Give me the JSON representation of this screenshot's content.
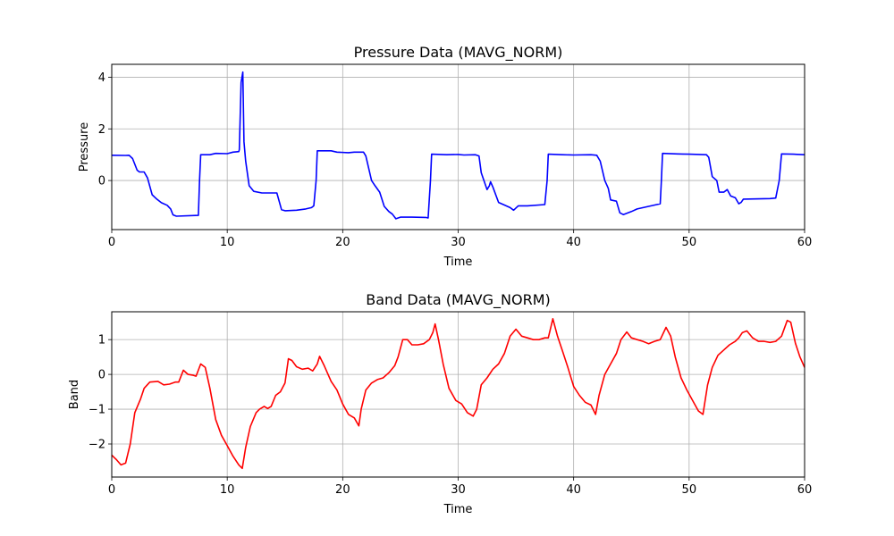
{
  "chart_data": [
    {
      "type": "line",
      "title": "Pressure Data (MAVG_NORM)",
      "xlabel": "Time",
      "ylabel": "Pressure",
      "xlim": [
        0,
        60
      ],
      "ylim": [
        -1.9,
        4.5
      ],
      "xticks": [
        0,
        10,
        20,
        30,
        40,
        50,
        60
      ],
      "yticks": [
        0,
        2,
        4
      ],
      "ytick_labels": [
        "0",
        "2",
        "4"
      ],
      "grid": true,
      "series": [
        {
          "color": "#0000ff",
          "points": [
            [
              0,
              0.98
            ],
            [
              1.2,
              0.97
            ],
            [
              1.5,
              0.98
            ],
            [
              1.8,
              0.85
            ],
            [
              2.2,
              0.4
            ],
            [
              2.4,
              0.33
            ],
            [
              2.8,
              0.33
            ],
            [
              3.1,
              0.1
            ],
            [
              3.5,
              -0.55
            ],
            [
              3.9,
              -0.72
            ],
            [
              4.3,
              -0.86
            ],
            [
              4.8,
              -0.96
            ],
            [
              5.1,
              -1.1
            ],
            [
              5.3,
              -1.33
            ],
            [
              5.6,
              -1.38
            ],
            [
              7.5,
              -1.35
            ],
            [
              7.6,
              0.0
            ],
            [
              7.7,
              1.0
            ],
            [
              8.5,
              1.0
            ],
            [
              9.0,
              1.05
            ],
            [
              10.0,
              1.04
            ],
            [
              10.5,
              1.1
            ],
            [
              11.0,
              1.12
            ],
            [
              11.05,
              1.2
            ],
            [
              11.2,
              3.8
            ],
            [
              11.35,
              4.2
            ],
            [
              11.45,
              1.5
            ],
            [
              11.6,
              0.75
            ],
            [
              11.9,
              -0.2
            ],
            [
              12.3,
              -0.42
            ],
            [
              13.0,
              -0.48
            ],
            [
              14.3,
              -0.48
            ],
            [
              14.7,
              -1.13
            ],
            [
              15.0,
              -1.17
            ],
            [
              16.0,
              -1.15
            ],
            [
              16.8,
              -1.1
            ],
            [
              17.3,
              -1.05
            ],
            [
              17.5,
              -0.98
            ],
            [
              17.7,
              0.0
            ],
            [
              17.8,
              1.15
            ],
            [
              19.0,
              1.15
            ],
            [
              19.5,
              1.1
            ],
            [
              20.5,
              1.08
            ],
            [
              21.0,
              1.1
            ],
            [
              21.8,
              1.1
            ],
            [
              22.0,
              0.95
            ],
            [
              22.5,
              0.0
            ],
            [
              22.8,
              -0.2
            ],
            [
              23.2,
              -0.45
            ],
            [
              23.6,
              -1.0
            ],
            [
              24.0,
              -1.2
            ],
            [
              24.3,
              -1.3
            ],
            [
              24.6,
              -1.48
            ],
            [
              25.0,
              -1.42
            ],
            [
              26.0,
              -1.42
            ],
            [
              27.2,
              -1.43
            ],
            [
              27.4,
              -1.45
            ],
            [
              27.6,
              0.0
            ],
            [
              27.7,
              1.02
            ],
            [
              29.0,
              1.0
            ],
            [
              30.0,
              1.01
            ],
            [
              30.5,
              0.99
            ],
            [
              31.5,
              1.0
            ],
            [
              31.8,
              0.95
            ],
            [
              32.0,
              0.3
            ],
            [
              32.5,
              -0.35
            ],
            [
              32.7,
              -0.2
            ],
            [
              32.8,
              -0.05
            ],
            [
              33.0,
              -0.25
            ],
            [
              33.5,
              -0.85
            ],
            [
              34.0,
              -0.95
            ],
            [
              34.5,
              -1.05
            ],
            [
              34.8,
              -1.15
            ],
            [
              35.2,
              -0.98
            ],
            [
              36.0,
              -0.98
            ],
            [
              37.5,
              -0.93
            ],
            [
              37.7,
              0.0
            ],
            [
              37.8,
              1.02
            ],
            [
              39.0,
              1.0
            ],
            [
              40.0,
              0.99
            ],
            [
              41.5,
              1.0
            ],
            [
              42.0,
              0.98
            ],
            [
              42.3,
              0.75
            ],
            [
              42.7,
              0.0
            ],
            [
              43.0,
              -0.3
            ],
            [
              43.2,
              -0.75
            ],
            [
              43.7,
              -0.8
            ],
            [
              44.0,
              -1.25
            ],
            [
              44.3,
              -1.32
            ],
            [
              45.0,
              -1.2
            ],
            [
              45.5,
              -1.1
            ],
            [
              47.5,
              -0.9
            ],
            [
              47.6,
              0.0
            ],
            [
              47.7,
              1.05
            ],
            [
              49.0,
              1.03
            ],
            [
              50.0,
              1.02
            ],
            [
              51.5,
              1.0
            ],
            [
              51.7,
              0.9
            ],
            [
              52.0,
              0.15
            ],
            [
              52.4,
              0.0
            ],
            [
              52.6,
              -0.45
            ],
            [
              53.0,
              -0.45
            ],
            [
              53.3,
              -0.35
            ],
            [
              53.6,
              -0.6
            ],
            [
              54.0,
              -0.67
            ],
            [
              54.3,
              -0.9
            ],
            [
              54.5,
              -0.85
            ],
            [
              54.7,
              -0.72
            ],
            [
              57.0,
              -0.7
            ],
            [
              57.5,
              -0.68
            ],
            [
              57.8,
              0.0
            ],
            [
              58.0,
              1.03
            ],
            [
              59.0,
              1.02
            ],
            [
              60.0,
              1.0
            ]
          ]
        }
      ]
    },
    {
      "type": "line",
      "title": "Band Data (MAVG_NORM)",
      "xlabel": "Time",
      "ylabel": "Band",
      "xlim": [
        0,
        60
      ],
      "ylim": [
        -2.95,
        1.8
      ],
      "xticks": [
        0,
        10,
        20,
        30,
        40,
        50,
        60
      ],
      "yticks": [
        -2,
        -1,
        0,
        1
      ],
      "ytick_labels": [
        "−2",
        "−1",
        "0",
        "1"
      ],
      "grid": true,
      "series": [
        {
          "color": "#ff0000",
          "points": [
            [
              0,
              -2.32
            ],
            [
              0.4,
              -2.45
            ],
            [
              0.8,
              -2.6
            ],
            [
              1.2,
              -2.55
            ],
            [
              1.6,
              -2.0
            ],
            [
              2.0,
              -1.1
            ],
            [
              2.5,
              -0.7
            ],
            [
              2.8,
              -0.4
            ],
            [
              3.3,
              -0.22
            ],
            [
              4.0,
              -0.2
            ],
            [
              4.5,
              -0.3
            ],
            [
              5.0,
              -0.28
            ],
            [
              5.5,
              -0.22
            ],
            [
              5.8,
              -0.22
            ],
            [
              6.0,
              -0.05
            ],
            [
              6.2,
              0.12
            ],
            [
              6.6,
              0.0
            ],
            [
              7.0,
              -0.02
            ],
            [
              7.3,
              -0.05
            ],
            [
              7.7,
              0.3
            ],
            [
              8.1,
              0.2
            ],
            [
              8.5,
              -0.4
            ],
            [
              9.0,
              -1.3
            ],
            [
              9.5,
              -1.75
            ],
            [
              10.0,
              -2.05
            ],
            [
              10.5,
              -2.35
            ],
            [
              11.0,
              -2.6
            ],
            [
              11.3,
              -2.7
            ],
            [
              11.6,
              -2.1
            ],
            [
              12.0,
              -1.5
            ],
            [
              12.5,
              -1.1
            ],
            [
              12.8,
              -1.0
            ],
            [
              13.2,
              -0.92
            ],
            [
              13.5,
              -0.98
            ],
            [
              13.8,
              -0.92
            ],
            [
              14.2,
              -0.6
            ],
            [
              14.6,
              -0.5
            ],
            [
              15.0,
              -0.25
            ],
            [
              15.3,
              0.45
            ],
            [
              15.6,
              0.4
            ],
            [
              16.0,
              0.22
            ],
            [
              16.5,
              0.15
            ],
            [
              17.0,
              0.18
            ],
            [
              17.4,
              0.1
            ],
            [
              17.8,
              0.3
            ],
            [
              18.0,
              0.52
            ],
            [
              18.4,
              0.25
            ],
            [
              19.0,
              -0.2
            ],
            [
              19.5,
              -0.45
            ],
            [
              20.0,
              -0.85
            ],
            [
              20.5,
              -1.15
            ],
            [
              21.0,
              -1.25
            ],
            [
              21.4,
              -1.48
            ],
            [
              21.6,
              -1.0
            ],
            [
              22.0,
              -0.45
            ],
            [
              22.5,
              -0.25
            ],
            [
              23.0,
              -0.15
            ],
            [
              23.5,
              -0.1
            ],
            [
              24.0,
              0.05
            ],
            [
              24.5,
              0.25
            ],
            [
              24.8,
              0.5
            ],
            [
              25.2,
              1.0
            ],
            [
              25.6,
              1.0
            ],
            [
              26.0,
              0.85
            ],
            [
              26.5,
              0.85
            ],
            [
              27.0,
              0.88
            ],
            [
              27.5,
              1.0
            ],
            [
              27.8,
              1.2
            ],
            [
              28.0,
              1.45
            ],
            [
              28.3,
              1.0
            ],
            [
              28.7,
              0.3
            ],
            [
              29.2,
              -0.4
            ],
            [
              29.8,
              -0.75
            ],
            [
              30.3,
              -0.85
            ],
            [
              30.8,
              -1.1
            ],
            [
              31.3,
              -1.2
            ],
            [
              31.6,
              -1.0
            ],
            [
              32.0,
              -0.3
            ],
            [
              32.5,
              -0.1
            ],
            [
              33.0,
              0.15
            ],
            [
              33.5,
              0.3
            ],
            [
              34.0,
              0.6
            ],
            [
              34.5,
              1.1
            ],
            [
              35.0,
              1.3
            ],
            [
              35.5,
              1.1
            ],
            [
              36.0,
              1.05
            ],
            [
              36.5,
              1.0
            ],
            [
              37.0,
              1.0
            ],
            [
              37.5,
              1.05
            ],
            [
              37.8,
              1.05
            ],
            [
              38.2,
              1.6
            ],
            [
              38.6,
              1.1
            ],
            [
              39.0,
              0.7
            ],
            [
              39.5,
              0.2
            ],
            [
              40.0,
              -0.35
            ],
            [
              40.5,
              -0.6
            ],
            [
              41.0,
              -0.8
            ],
            [
              41.5,
              -0.88
            ],
            [
              41.9,
              -1.15
            ],
            [
              42.2,
              -0.6
            ],
            [
              42.7,
              0.0
            ],
            [
              43.2,
              0.3
            ],
            [
              43.7,
              0.6
            ],
            [
              44.1,
              1.0
            ],
            [
              44.6,
              1.22
            ],
            [
              45.0,
              1.05
            ],
            [
              45.5,
              1.0
            ],
            [
              46.0,
              0.95
            ],
            [
              46.5,
              0.88
            ],
            [
              47.0,
              0.95
            ],
            [
              47.5,
              1.0
            ],
            [
              48.0,
              1.35
            ],
            [
              48.4,
              1.1
            ],
            [
              48.8,
              0.5
            ],
            [
              49.3,
              -0.1
            ],
            [
              49.8,
              -0.45
            ],
            [
              50.3,
              -0.75
            ],
            [
              50.8,
              -1.05
            ],
            [
              51.2,
              -1.15
            ],
            [
              51.6,
              -0.3
            ],
            [
              52.0,
              0.2
            ],
            [
              52.5,
              0.55
            ],
            [
              53.0,
              0.7
            ],
            [
              53.5,
              0.85
            ],
            [
              54.0,
              0.95
            ],
            [
              54.3,
              1.05
            ],
            [
              54.6,
              1.2
            ],
            [
              55.0,
              1.25
            ],
            [
              55.5,
              1.05
            ],
            [
              56.0,
              0.95
            ],
            [
              56.5,
              0.95
            ],
            [
              57.0,
              0.92
            ],
            [
              57.5,
              0.95
            ],
            [
              58.0,
              1.1
            ],
            [
              58.5,
              1.55
            ],
            [
              58.8,
              1.5
            ],
            [
              59.2,
              0.9
            ],
            [
              59.6,
              0.5
            ],
            [
              60.0,
              0.2
            ]
          ]
        }
      ]
    }
  ]
}
